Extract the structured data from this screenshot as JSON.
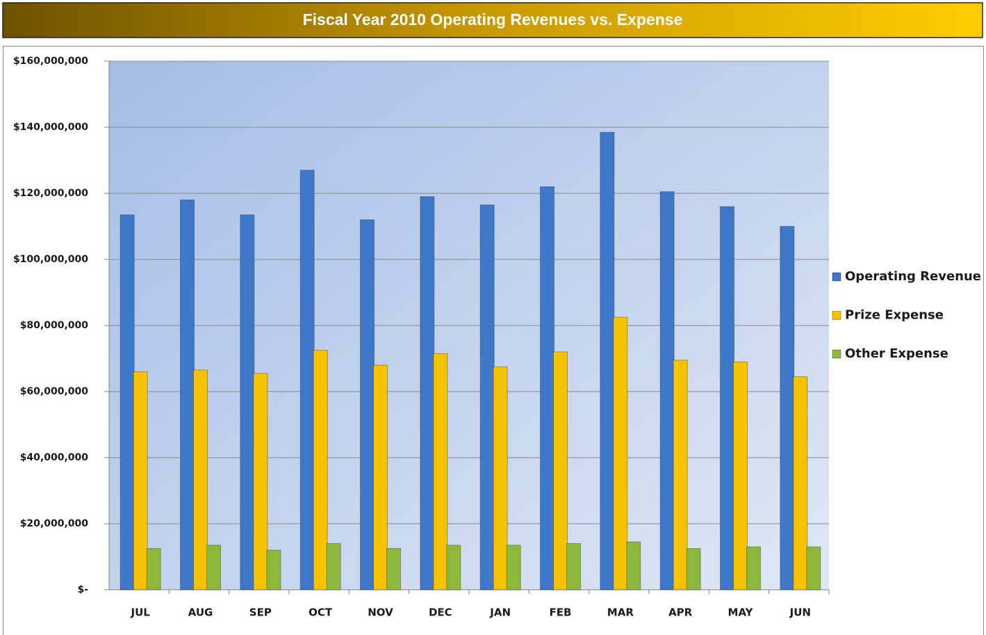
{
  "chart_data": {
    "type": "bar",
    "title": "Fiscal Year 2010 Operating Revenues vs. Expense",
    "categories": [
      "JUL",
      "AUG",
      "SEP",
      "OCT",
      "NOV",
      "DEC",
      "JAN",
      "FEB",
      "MAR",
      "APR",
      "MAY",
      "JUN"
    ],
    "series": [
      {
        "name": "Operating Revenue",
        "color": "#3f78c8",
        "values": [
          113500000,
          118000000,
          113500000,
          127000000,
          112000000,
          119000000,
          116500000,
          122000000,
          138500000,
          120500000,
          116000000,
          110000000
        ]
      },
      {
        "name": "Prize Expense",
        "color": "#f7c300",
        "values": [
          66000000,
          66500000,
          65500000,
          72500000,
          68000000,
          71500000,
          67500000,
          72000000,
          82500000,
          69500000,
          69000000,
          64500000
        ]
      },
      {
        "name": "Other Expense",
        "color": "#8db83c",
        "values": [
          12500000,
          13500000,
          12000000,
          14000000,
          12500000,
          13500000,
          13500000,
          14000000,
          14500000,
          12500000,
          13000000,
          13000000
        ]
      }
    ],
    "ylim": [
      0,
      160000000
    ],
    "yticks": [
      {
        "value": 0,
        "label": "$-"
      },
      {
        "value": 20000000,
        "label": "$20,000,000"
      },
      {
        "value": 40000000,
        "label": "$40,000,000"
      },
      {
        "value": 60000000,
        "label": "$60,000,000"
      },
      {
        "value": 80000000,
        "label": "$80,000,000"
      },
      {
        "value": 100000000,
        "label": "$100,000,000"
      },
      {
        "value": 120000000,
        "label": "$120,000,000"
      },
      {
        "value": 140000000,
        "label": "$140,000,000"
      },
      {
        "value": 160000000,
        "label": "$160,000,000"
      }
    ],
    "grid": true,
    "legend": "right"
  }
}
